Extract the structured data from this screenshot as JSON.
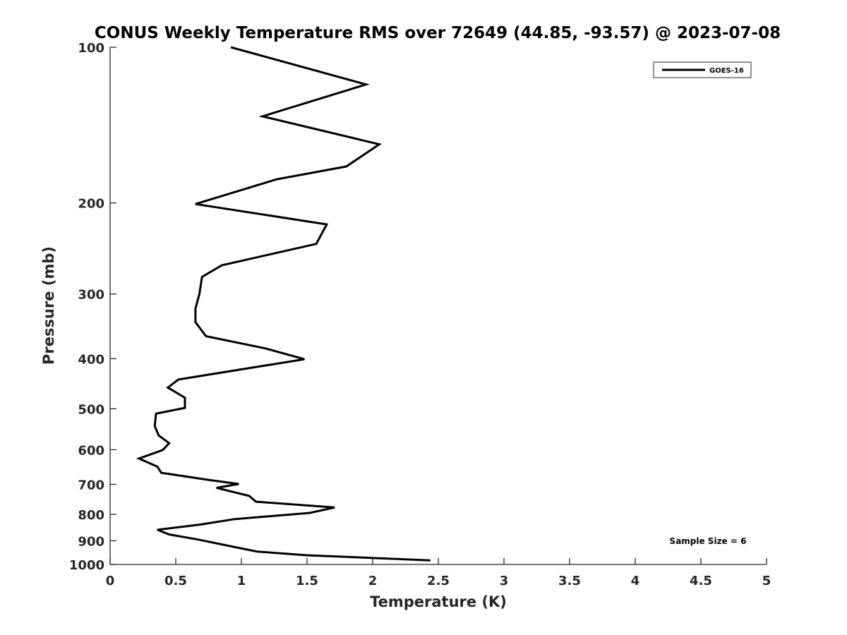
{
  "chart_data": {
    "type": "line",
    "title": "CONUS Weekly Temperature RMS over 72649 (44.85, -93.57) @ 2023-07-08",
    "xlabel": "Temperature (K)",
    "ylabel": "Pressure (mb)",
    "xlim": [
      0,
      5
    ],
    "ylim": [
      100,
      1000
    ],
    "y_scale": "log",
    "y_reversed": true,
    "grid": false,
    "legend_position": "top-right",
    "x_ticks": [
      "0",
      "0.5",
      "1",
      "1.5",
      "2",
      "2.5",
      "3",
      "3.5",
      "4",
      "4.5",
      "5"
    ],
    "x_tick_values": [
      0,
      0.5,
      1,
      1.5,
      2,
      2.5,
      3,
      3.5,
      4,
      4.5,
      5
    ],
    "y_ticks": [
      "100",
      "200",
      "300",
      "400",
      "500",
      "600",
      "700",
      "800",
      "900",
      "1000"
    ],
    "y_tick_values": [
      100,
      200,
      300,
      400,
      500,
      600,
      700,
      800,
      900,
      1000
    ],
    "series": [
      {
        "name": "GOES-16",
        "color": "#000000",
        "points": [
          [
            0.92,
            100
          ],
          [
            1.95,
            118
          ],
          [
            1.16,
            136
          ],
          [
            2.05,
            154
          ],
          [
            1.8,
            170
          ],
          [
            1.27,
            180
          ],
          [
            0.65,
            201
          ],
          [
            1.65,
            220
          ],
          [
            1.57,
            240
          ],
          [
            0.85,
            264
          ],
          [
            0.7,
            278
          ],
          [
            0.68,
            300
          ],
          [
            0.65,
            320
          ],
          [
            0.65,
            340
          ],
          [
            0.73,
            362
          ],
          [
            1.18,
            382
          ],
          [
            1.48,
            401
          ],
          [
            0.52,
            439
          ],
          [
            0.44,
            455
          ],
          [
            0.57,
            476
          ],
          [
            0.57,
            498
          ],
          [
            0.35,
            511
          ],
          [
            0.34,
            540
          ],
          [
            0.37,
            563
          ],
          [
            0.45,
            583
          ],
          [
            0.4,
            601
          ],
          [
            0.22,
            624
          ],
          [
            0.36,
            647
          ],
          [
            0.39,
            665
          ],
          [
            0.73,
            685
          ],
          [
            0.98,
            699
          ],
          [
            0.81,
            711
          ],
          [
            1.06,
            737
          ],
          [
            1.11,
            756
          ],
          [
            1.71,
            776
          ],
          [
            1.52,
            795
          ],
          [
            0.95,
            817
          ],
          [
            0.69,
            837
          ],
          [
            0.36,
            857
          ],
          [
            0.45,
            875
          ],
          [
            0.67,
            895
          ],
          [
            0.9,
            920
          ],
          [
            1.12,
            944
          ],
          [
            1.5,
            960
          ],
          [
            2.44,
            982
          ]
        ]
      }
    ],
    "annotations": [
      "Sample Size = 6"
    ]
  }
}
